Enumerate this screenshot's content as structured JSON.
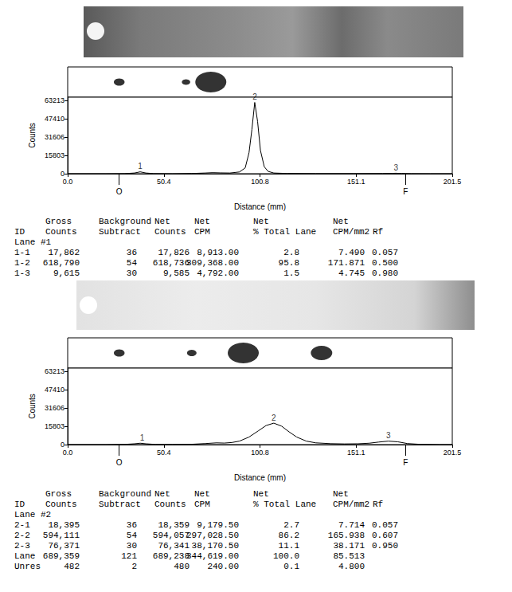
{
  "chart_data": [
    {
      "type": "line",
      "color": "#000000",
      "x_label": "Distance (mm)",
      "y_label": "Counts",
      "x": [
        0,
        10,
        20,
        30,
        35,
        38,
        41,
        45,
        55,
        65,
        72,
        76,
        80,
        85,
        90,
        93,
        95,
        96.5,
        98,
        99.5,
        101,
        103,
        105,
        108,
        115,
        130,
        150,
        165,
        170,
        172,
        175,
        180,
        190,
        201.5
      ],
      "values": [
        0,
        0,
        0,
        100,
        600,
        1600,
        600,
        100,
        0,
        200,
        600,
        900,
        700,
        600,
        1500,
        5000,
        18000,
        38000,
        61500,
        45000,
        20000,
        6000,
        2000,
        600,
        200,
        100,
        100,
        150,
        300,
        400,
        200,
        50,
        0,
        0
      ],
      "xlim": [
        0,
        201.5
      ],
      "xticks": [
        {
          "value": 0,
          "label": "0.0"
        },
        50.4,
        100.8,
        151.1,
        201.5
      ],
      "ylim": [
        0,
        66000
      ],
      "yticks": [
        0,
        15803,
        31606,
        47410,
        63213
      ],
      "peaks": [
        {
          "x": 38,
          "y": 1600,
          "label": "1"
        },
        {
          "x": 98,
          "y": 61500,
          "label": "2"
        },
        {
          "x": 172,
          "y": 400,
          "label": "3"
        }
      ],
      "markers": [
        {
          "x": 27,
          "label": "O"
        },
        {
          "x": 177,
          "label": "F"
        }
      ],
      "spots": {
        "x": [
          27,
          62,
          75
        ],
        "size": [
          9,
          7,
          26
        ]
      }
    },
    {
      "type": "line",
      "color": "#000000",
      "x_label": "Distance (mm)",
      "y_label": "Counts",
      "x": [
        0,
        20,
        30,
        35,
        38,
        41,
        46,
        55,
        65,
        72,
        78,
        82,
        86,
        90,
        95,
        100,
        104,
        108,
        112,
        116,
        120,
        125,
        130,
        138,
        145,
        152,
        158,
        163,
        168,
        173,
        178,
        185,
        195,
        201.5
      ],
      "values": [
        0,
        0,
        200,
        700,
        1200,
        700,
        150,
        100,
        300,
        900,
        1500,
        1300,
        1800,
        3000,
        6500,
        12000,
        16500,
        18500,
        16000,
        11000,
        6500,
        3000,
        1500,
        800,
        600,
        700,
        1200,
        2200,
        3000,
        2400,
        900,
        200,
        0,
        0
      ],
      "xlim": [
        0,
        201.5
      ],
      "xticks": [
        {
          "value": 0,
          "label": "0.0"
        },
        50.4,
        100.8,
        151.1,
        201.5
      ],
      "ylim": [
        0,
        66000
      ],
      "yticks": [
        0,
        15803,
        31606,
        47410,
        63213
      ],
      "peaks": [
        {
          "x": 39,
          "y": 1200,
          "label": "1"
        },
        {
          "x": 108,
          "y": 18500,
          "label": "2"
        },
        {
          "x": 168,
          "y": 3000,
          "label": "3"
        }
      ],
      "markers": [
        {
          "x": 27,
          "label": "O"
        },
        {
          "x": 177,
          "label": "F"
        }
      ],
      "spots": {
        "x": [
          27,
          65,
          92,
          133
        ],
        "size": [
          9,
          8,
          26,
          18
        ]
      }
    }
  ],
  "tables": [
    {
      "columns": [
        "ID",
        "Gross Counts",
        "Background Subtract",
        "Net Counts",
        "Net CPM",
        "Net % Total Lane",
        "Net CPM/mm2",
        "Rf"
      ],
      "section": "Lane #1",
      "rows": [
        [
          "1-1",
          "17,862",
          "36",
          "17,826",
          "8,913.00",
          "2.8",
          "7.490",
          "0.057"
        ],
        [
          "1-2",
          "618,790",
          "54",
          "618,736",
          "309,368.00",
          "95.8",
          "171.871",
          "0.500"
        ],
        [
          "1-3",
          "9,615",
          "30",
          "9,585",
          "4,792.00",
          "1.5",
          "4.745",
          "0.980"
        ]
      ]
    },
    {
      "columns": [
        "ID",
        "Gross Counts",
        "Background Subtract",
        "Net Counts",
        "Net CPM",
        "Net % Total Lane",
        "Net CPM/mm2",
        "Rf"
      ],
      "section": "Lane #2",
      "rows": [
        [
          "2-1",
          "18,395",
          "36",
          "18,359",
          "9,179.50",
          "2.7",
          "7.714",
          "0.057"
        ],
        [
          "2-2",
          "594,111",
          "54",
          "594,057",
          "297,028.50",
          "86.2",
          "165.938",
          "0.607"
        ],
        [
          "2-3",
          "76,371",
          "30",
          "76,341",
          "38,170.50",
          "11.1",
          "38.171",
          "0.950"
        ],
        [
          "Lane",
          "689,359",
          "121",
          "689,238",
          "344,619.00",
          "100.0",
          "85.513"
        ],
        [
          "Unres",
          "482",
          "2",
          "480",
          "240.00",
          "0.1",
          "4.800"
        ]
      ]
    }
  ]
}
